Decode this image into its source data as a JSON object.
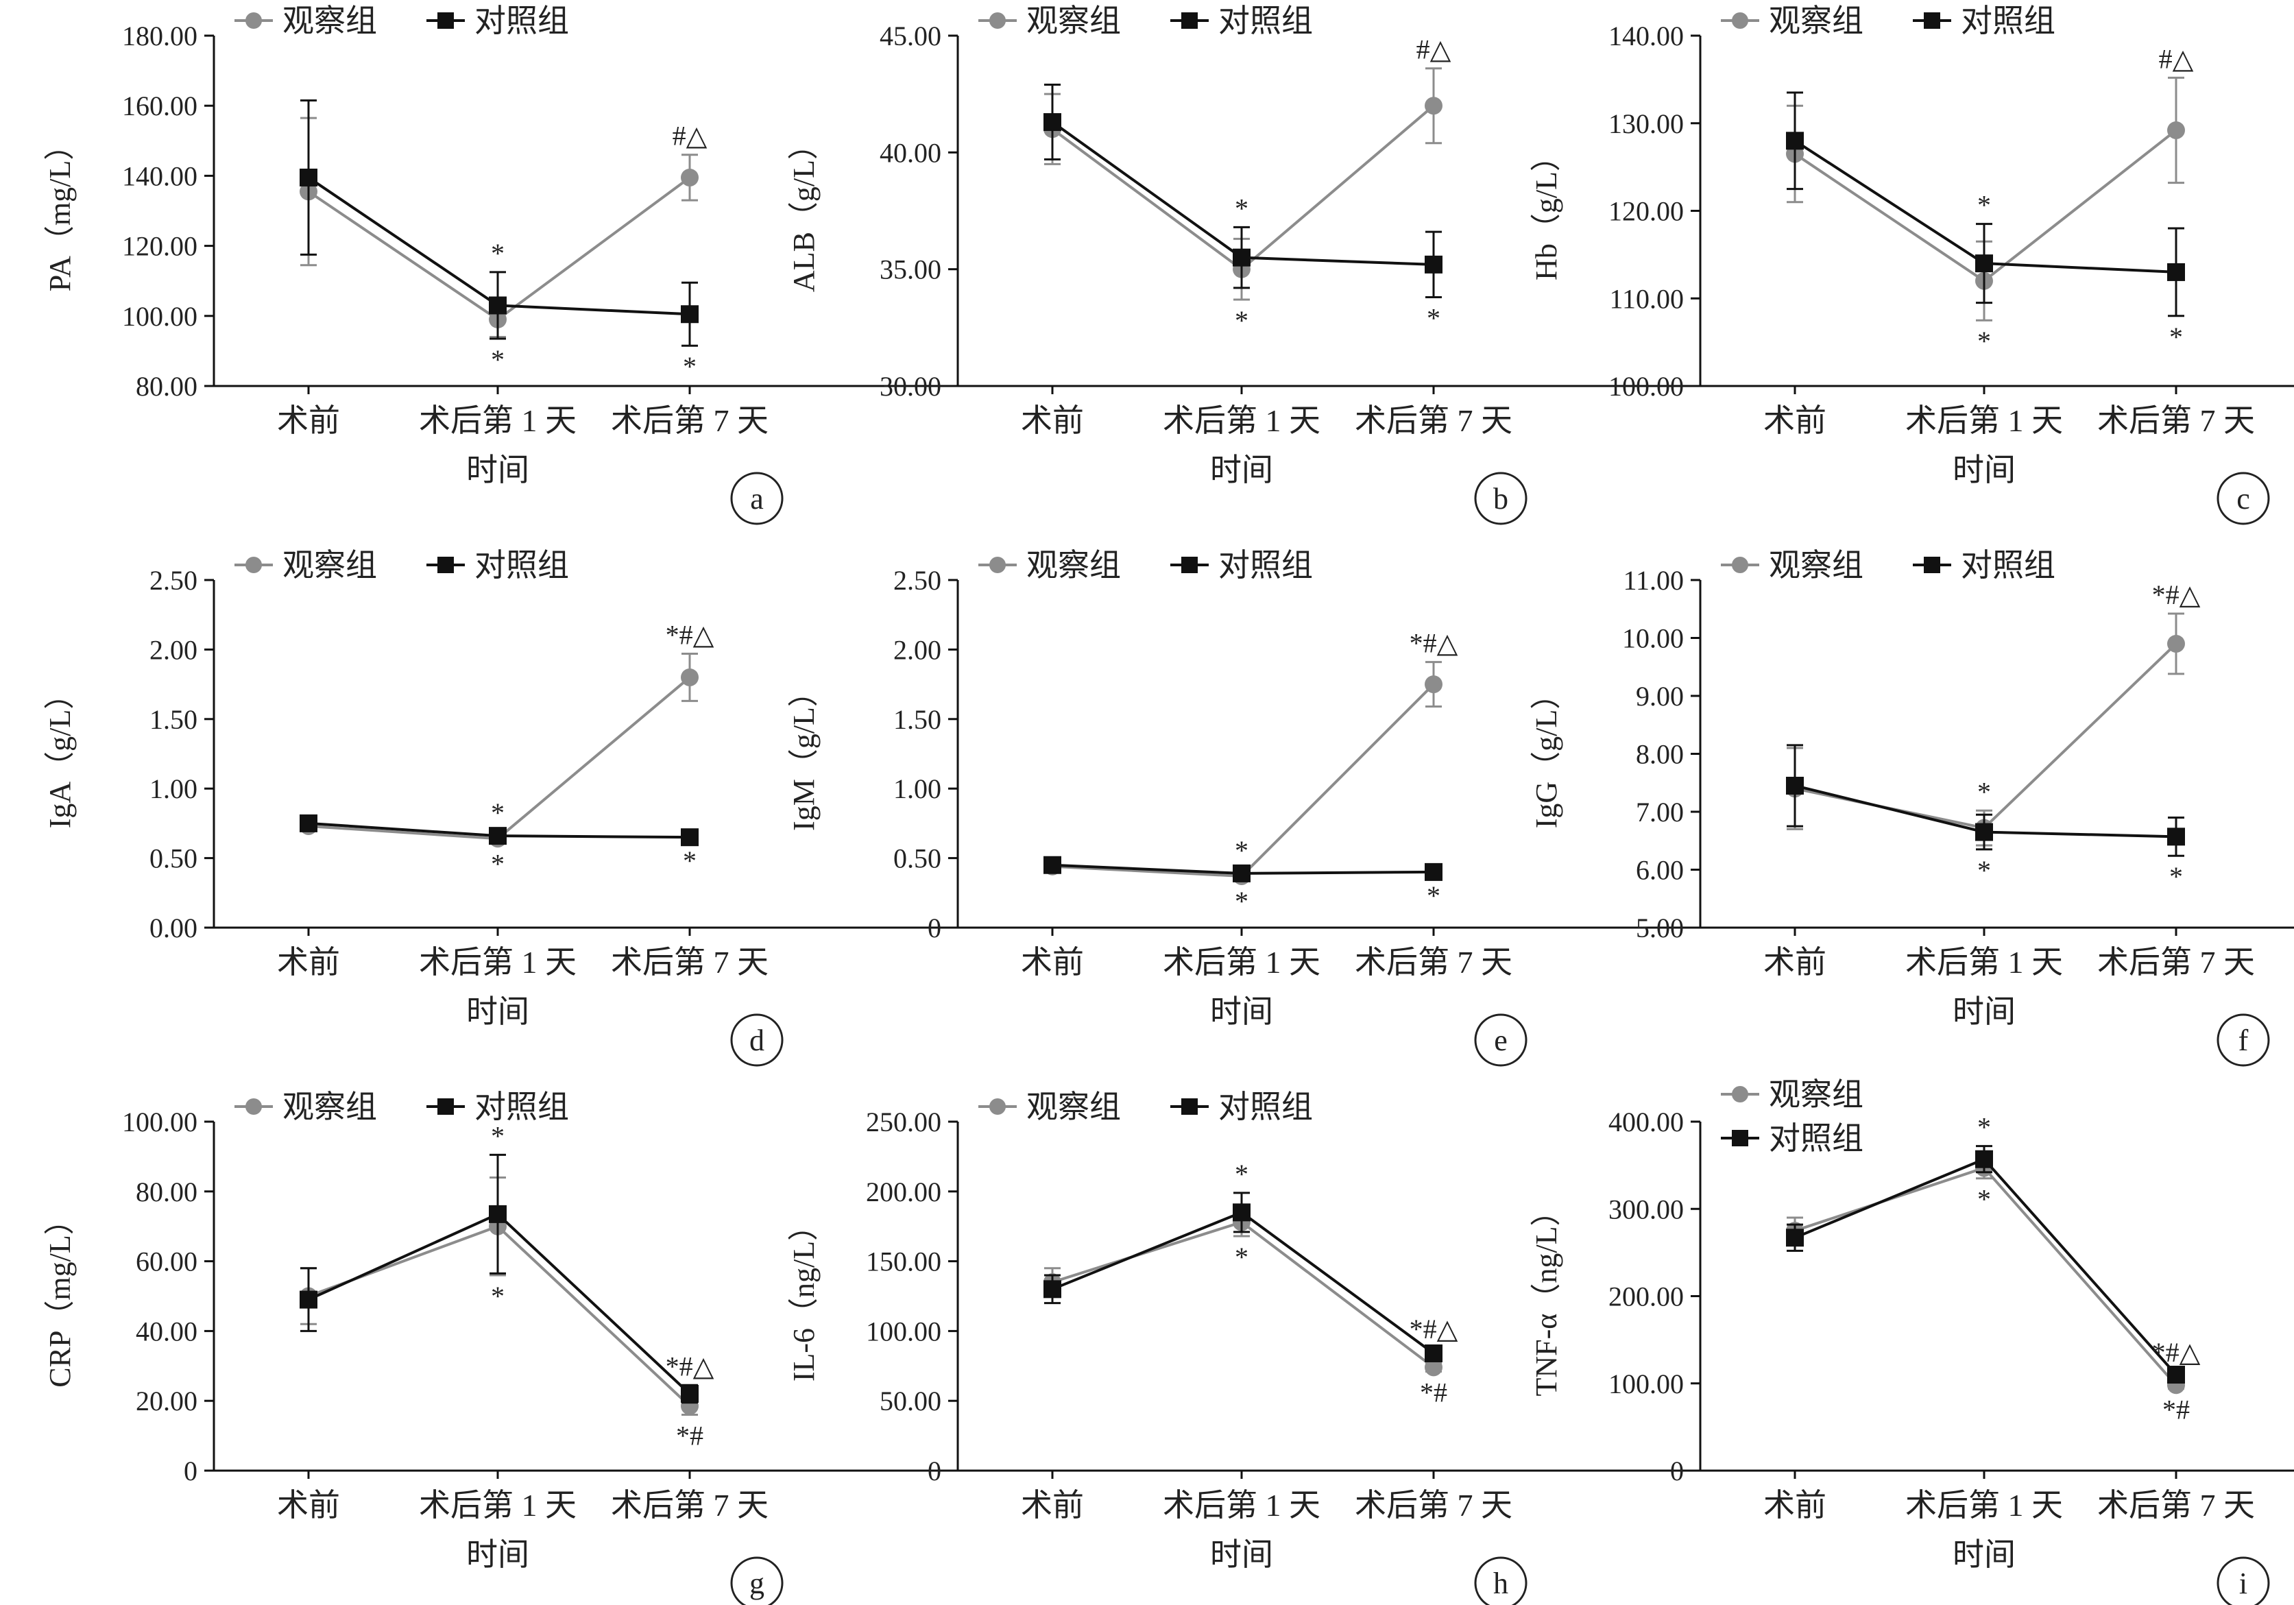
{
  "legend_labels": {
    "observation": "观察组",
    "control": "对照组"
  },
  "xaxis_title": "时间",
  "colors": {
    "observation": "#8c8c8c",
    "control": "#111111"
  },
  "chart_data": [
    {
      "type": "line",
      "panel": "a",
      "ylabel": "PA（mg/L）",
      "categories": [
        "术前",
        "术后第 1 天",
        "术后第 7 天"
      ],
      "ylim": [
        80,
        180
      ],
      "yticks": [
        80,
        100,
        120,
        140,
        160,
        180
      ],
      "ytick_decimals": 2,
      "series": [
        {
          "name": "观察组",
          "values": [
            135.5,
            99.0,
            139.5
          ],
          "errors": [
            21.0,
            5.0,
            6.5
          ]
        },
        {
          "name": "对照组",
          "values": [
            139.5,
            103.0,
            100.5
          ],
          "errors": [
            22.0,
            9.5,
            9.0
          ]
        }
      ],
      "annotations": [
        {
          "category": 1,
          "position": "above",
          "text": "*"
        },
        {
          "category": 1,
          "position": "below",
          "text": "*"
        },
        {
          "category": 2,
          "position": "above",
          "text": "#△"
        },
        {
          "category": 2,
          "position": "below",
          "text": "*"
        }
      ]
    },
    {
      "type": "line",
      "panel": "b",
      "ylabel": "ALB（g/L）",
      "categories": [
        "术前",
        "术后第 1 天",
        "术后第 7 天"
      ],
      "ylim": [
        30,
        45
      ],
      "yticks": [
        30,
        35,
        40,
        45
      ],
      "ytick_decimals": 2,
      "series": [
        {
          "name": "观察组",
          "values": [
            41.0,
            35.0,
            42.0
          ],
          "errors": [
            1.5,
            1.3,
            1.6
          ]
        },
        {
          "name": "对照组",
          "values": [
            41.3,
            35.5,
            35.2
          ],
          "errors": [
            1.6,
            1.3,
            1.4
          ]
        }
      ],
      "annotations": [
        {
          "category": 1,
          "position": "above",
          "text": "*"
        },
        {
          "category": 1,
          "position": "below",
          "text": "*"
        },
        {
          "category": 2,
          "position": "above",
          "text": "#△"
        },
        {
          "category": 2,
          "position": "below",
          "text": "*"
        }
      ]
    },
    {
      "type": "line",
      "panel": "c",
      "ylabel": "Hb（g/L）",
      "categories": [
        "术前",
        "术后第 1 天",
        "术后第 7 天"
      ],
      "ylim": [
        100,
        140
      ],
      "yticks": [
        100,
        110,
        120,
        130,
        140
      ],
      "ytick_decimals": 2,
      "series": [
        {
          "name": "观察组",
          "values": [
            126.5,
            112.0,
            129.2
          ],
          "errors": [
            5.5,
            4.5,
            6.0
          ]
        },
        {
          "name": "对照组",
          "values": [
            128.0,
            114.0,
            113.0
          ],
          "errors": [
            5.5,
            4.5,
            5.0
          ]
        }
      ],
      "annotations": [
        {
          "category": 1,
          "position": "above",
          "text": "*"
        },
        {
          "category": 1,
          "position": "below",
          "text": "*"
        },
        {
          "category": 2,
          "position": "above",
          "text": "#△"
        },
        {
          "category": 2,
          "position": "below",
          "text": "*"
        }
      ]
    },
    {
      "type": "line",
      "panel": "d",
      "ylabel": "IgA（g/L）",
      "categories": [
        "术前",
        "术后第 1 天",
        "术后第 7 天"
      ],
      "ylim": [
        0,
        2.5
      ],
      "yticks": [
        0,
        0.5,
        1.0,
        1.5,
        2.0,
        2.5
      ],
      "ytick_decimals": 2,
      "series": [
        {
          "name": "观察组",
          "values": [
            0.73,
            0.64,
            1.8
          ],
          "errors": [
            0.03,
            0.03,
            0.17
          ]
        },
        {
          "name": "对照组",
          "values": [
            0.75,
            0.66,
            0.65
          ],
          "errors": [
            0.03,
            0.03,
            0.02
          ]
        }
      ],
      "annotations": [
        {
          "category": 1,
          "position": "above",
          "text": "*"
        },
        {
          "category": 1,
          "position": "below",
          "text": "*"
        },
        {
          "category": 2,
          "position": "above",
          "text": "*#△"
        },
        {
          "category": 2,
          "position": "below",
          "text": "*"
        }
      ]
    },
    {
      "type": "line",
      "panel": "e",
      "ylabel": "IgM（g/L）",
      "categories": [
        "术前",
        "术后第 1 天",
        "术后第 7 天"
      ],
      "ylim": [
        0,
        2.5
      ],
      "yticks": [
        0,
        0.5,
        1.0,
        1.5,
        2.0,
        2.5
      ],
      "ytick_decimals": 2,
      "zero_label": "0",
      "series": [
        {
          "name": "观察组",
          "values": [
            0.44,
            0.37,
            1.75
          ],
          "errors": [
            0.03,
            0.03,
            0.16
          ]
        },
        {
          "name": "对照组",
          "values": [
            0.45,
            0.39,
            0.4
          ],
          "errors": [
            0.03,
            0.03,
            0.02
          ]
        }
      ],
      "annotations": [
        {
          "category": 1,
          "position": "above",
          "text": "*"
        },
        {
          "category": 1,
          "position": "below",
          "text": "*"
        },
        {
          "category": 2,
          "position": "above",
          "text": "*#△"
        },
        {
          "category": 2,
          "position": "below",
          "text": "*"
        }
      ]
    },
    {
      "type": "line",
      "panel": "f",
      "ylabel": "IgG（g/L）",
      "categories": [
        "术前",
        "术后第 1 天",
        "术后第 7 天"
      ],
      "ylim": [
        5,
        11
      ],
      "yticks": [
        5,
        6,
        7,
        8,
        9,
        10,
        11
      ],
      "ytick_decimals": 2,
      "series": [
        {
          "name": "观察组",
          "values": [
            7.4,
            6.72,
            9.9
          ],
          "errors": [
            0.7,
            0.3,
            0.52
          ]
        },
        {
          "name": "对照组",
          "values": [
            7.45,
            6.65,
            6.57
          ],
          "errors": [
            0.7,
            0.3,
            0.33
          ]
        }
      ],
      "annotations": [
        {
          "category": 1,
          "position": "above",
          "text": "*"
        },
        {
          "category": 1,
          "position": "below",
          "text": "*"
        },
        {
          "category": 2,
          "position": "above",
          "text": "*#△"
        },
        {
          "category": 2,
          "position": "below",
          "text": "*"
        }
      ]
    },
    {
      "type": "line",
      "panel": "g",
      "ylabel": "CRP（mg/L）",
      "categories": [
        "术前",
        "术后第 1 天",
        "术后第 7 天"
      ],
      "ylim": [
        0,
        100
      ],
      "yticks": [
        0,
        20,
        40,
        60,
        80,
        100
      ],
      "ytick_decimals": 2,
      "zero_label": "0",
      "series": [
        {
          "name": "观察组",
          "values": [
            50.0,
            70.0,
            18.5
          ],
          "errors": [
            8.0,
            14.0,
            2.5
          ]
        },
        {
          "name": "对照组",
          "values": [
            49.0,
            73.5,
            22.0
          ],
          "errors": [
            9.0,
            17.0,
            2.5
          ]
        }
      ],
      "annotations": [
        {
          "category": 1,
          "position": "above",
          "text": "*"
        },
        {
          "category": 1,
          "position": "below",
          "text": "*"
        },
        {
          "category": 2,
          "position": "above",
          "text": "*#△"
        },
        {
          "category": 2,
          "position": "below",
          "text": "*#"
        }
      ]
    },
    {
      "type": "line",
      "panel": "h",
      "ylabel": "IL-6（ng/L）",
      "categories": [
        "术前",
        "术后第 1 天",
        "术后第 7 天"
      ],
      "ylim": [
        0,
        250
      ],
      "yticks": [
        0,
        50,
        100,
        150,
        200,
        250
      ],
      "ytick_decimals": 2,
      "zero_label": "0",
      "series": [
        {
          "name": "观察组",
          "values": [
            135.0,
            178.0,
            74.0
          ],
          "errors": [
            10.0,
            10.0,
            3.0
          ]
        },
        {
          "name": "对照组",
          "values": [
            130.0,
            185.0,
            84.0
          ],
          "errors": [
            10.0,
            14.0,
            4.0
          ]
        }
      ],
      "annotations": [
        {
          "category": 1,
          "position": "above",
          "text": "*"
        },
        {
          "category": 1,
          "position": "below",
          "text": "*"
        },
        {
          "category": 2,
          "position": "above",
          "text": "*#△"
        },
        {
          "category": 2,
          "position": "below",
          "text": "*#"
        }
      ]
    },
    {
      "type": "line",
      "panel": "i",
      "ylabel": "TNF-α（ng/L）",
      "categories": [
        "术前",
        "术后第 1 天",
        "术后第 7 天"
      ],
      "ylim": [
        0,
        400
      ],
      "yticks": [
        0,
        100,
        200,
        300,
        400
      ],
      "ytick_decimals": 2,
      "zero_label": "0",
      "legend_position": "top-left-stacked",
      "series": [
        {
          "name": "观察组",
          "values": [
            275.0,
            347.0,
            98.0
          ],
          "errors": [
            15.0,
            12.0,
            4.0
          ]
        },
        {
          "name": "对照组",
          "values": [
            267.0,
            357.0,
            110.0
          ],
          "errors": [
            15.0,
            15.0,
            4.0
          ]
        }
      ],
      "annotations": [
        {
          "category": 1,
          "position": "above",
          "text": "*"
        },
        {
          "category": 1,
          "position": "below",
          "text": "*"
        },
        {
          "category": 2,
          "position": "above",
          "text": "*#△"
        },
        {
          "category": 2,
          "position": "below",
          "text": "*#"
        }
      ]
    }
  ]
}
